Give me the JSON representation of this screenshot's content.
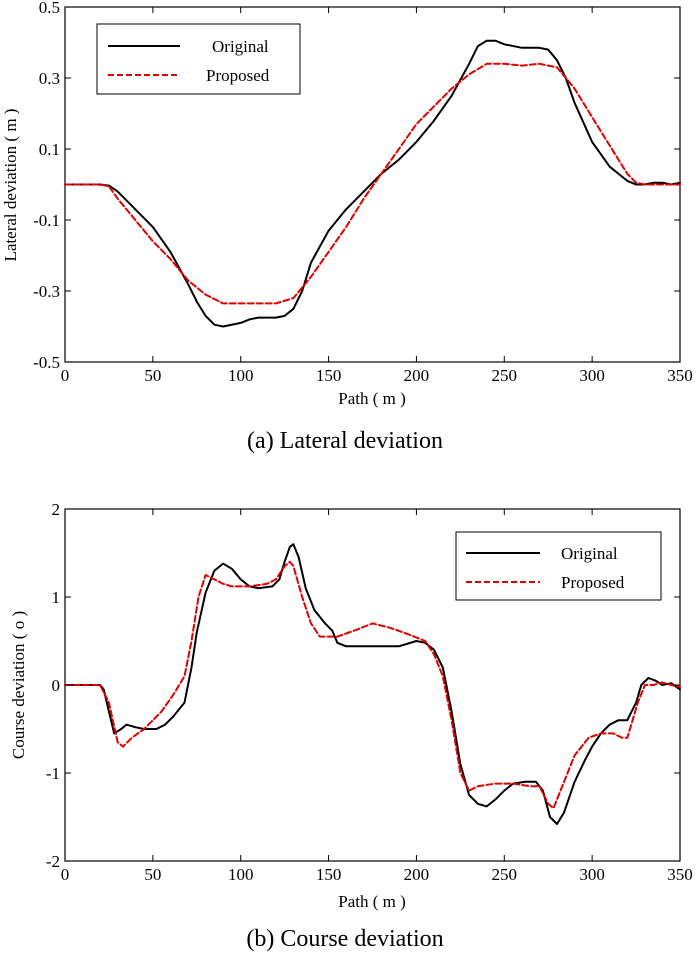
{
  "chart_data": [
    {
      "type": "line",
      "caption": "(a) Lateral deviation",
      "xlabel": "Path ( m )",
      "ylabel": "Lateral deviation ( m )",
      "xlim": [
        0,
        350
      ],
      "ylim": [
        -0.5,
        0.5
      ],
      "xticks": [
        0,
        50,
        100,
        150,
        200,
        250,
        300,
        350
      ],
      "yticks": [
        -0.5,
        -0.3,
        -0.1,
        0.1,
        0.3,
        0.5
      ],
      "ytick_labels": [
        "-0.5",
        "-0.3",
        "-0.1",
        "0.1",
        "0.3",
        "0.5"
      ],
      "grid": false,
      "legend_position": "top-left",
      "series": [
        {
          "name": "Original",
          "color": "#000000",
          "style": "solid",
          "points": [
            [
              0,
              0
            ],
            [
              20,
              0
            ],
            [
              25,
              -0.003
            ],
            [
              30,
              -0.02
            ],
            [
              40,
              -0.07
            ],
            [
              50,
              -0.12
            ],
            [
              60,
              -0.19
            ],
            [
              70,
              -0.28
            ],
            [
              75,
              -0.33
            ],
            [
              80,
              -0.37
            ],
            [
              85,
              -0.395
            ],
            [
              90,
              -0.4
            ],
            [
              100,
              -0.39
            ],
            [
              105,
              -0.38
            ],
            [
              110,
              -0.375
            ],
            [
              120,
              -0.375
            ],
            [
              125,
              -0.37
            ],
            [
              130,
              -0.35
            ],
            [
              135,
              -0.3
            ],
            [
              140,
              -0.22
            ],
            [
              150,
              -0.13
            ],
            [
              160,
              -0.07
            ],
            [
              170,
              -0.02
            ],
            [
              180,
              0.03
            ],
            [
              190,
              0.07
            ],
            [
              200,
              0.12
            ],
            [
              210,
              0.18
            ],
            [
              220,
              0.25
            ],
            [
              230,
              0.34
            ],
            [
              235,
              0.39
            ],
            [
              240,
              0.405
            ],
            [
              245,
              0.405
            ],
            [
              250,
              0.395
            ],
            [
              260,
              0.385
            ],
            [
              270,
              0.385
            ],
            [
              275,
              0.38
            ],
            [
              280,
              0.35
            ],
            [
              285,
              0.3
            ],
            [
              290,
              0.23
            ],
            [
              300,
              0.12
            ],
            [
              310,
              0.05
            ],
            [
              320,
              0.01
            ],
            [
              325,
              0.0
            ],
            [
              330,
              0.0
            ],
            [
              335,
              0.005
            ],
            [
              340,
              0.005
            ],
            [
              345,
              0.0
            ],
            [
              350,
              0.005
            ]
          ]
        },
        {
          "name": "Proposed",
          "color": "#e00000",
          "style": "dashed",
          "points": [
            [
              0,
              0
            ],
            [
              20,
              0
            ],
            [
              25,
              -0.005
            ],
            [
              30,
              -0.04
            ],
            [
              40,
              -0.1
            ],
            [
              50,
              -0.16
            ],
            [
              60,
              -0.21
            ],
            [
              70,
              -0.27
            ],
            [
              80,
              -0.31
            ],
            [
              90,
              -0.335
            ],
            [
              100,
              -0.335
            ],
            [
              110,
              -0.335
            ],
            [
              120,
              -0.335
            ],
            [
              130,
              -0.32
            ],
            [
              140,
              -0.26
            ],
            [
              150,
              -0.19
            ],
            [
              160,
              -0.12
            ],
            [
              170,
              -0.04
            ],
            [
              180,
              0.03
            ],
            [
              190,
              0.1
            ],
            [
              200,
              0.17
            ],
            [
              210,
              0.22
            ],
            [
              220,
              0.27
            ],
            [
              230,
              0.31
            ],
            [
              240,
              0.34
            ],
            [
              250,
              0.34
            ],
            [
              260,
              0.335
            ],
            [
              270,
              0.34
            ],
            [
              275,
              0.335
            ],
            [
              280,
              0.33
            ],
            [
              290,
              0.27
            ],
            [
              300,
              0.19
            ],
            [
              310,
              0.11
            ],
            [
              320,
              0.03
            ],
            [
              325,
              0.005
            ],
            [
              330,
              0.0
            ],
            [
              340,
              0.0
            ],
            [
              350,
              0.0
            ]
          ]
        }
      ]
    },
    {
      "type": "line",
      "caption": "(b) Course deviation",
      "xlabel": "Path ( m )",
      "ylabel": "Course deviation ( o )",
      "xlim": [
        0,
        350
      ],
      "ylim": [
        -2,
        2
      ],
      "xticks": [
        0,
        50,
        100,
        150,
        200,
        250,
        300,
        350
      ],
      "yticks": [
        -2,
        -1,
        0,
        1,
        2
      ],
      "ytick_labels": [
        "-2",
        "-1",
        "0",
        "1",
        "2"
      ],
      "grid": false,
      "legend_position": "top-right",
      "series": [
        {
          "name": "Original",
          "color": "#000000",
          "style": "solid",
          "points": [
            [
              0,
              0
            ],
            [
              20,
              0
            ],
            [
              22,
              -0.05
            ],
            [
              25,
              -0.3
            ],
            [
              28,
              -0.55
            ],
            [
              32,
              -0.5
            ],
            [
              35,
              -0.45
            ],
            [
              40,
              -0.48
            ],
            [
              45,
              -0.5
            ],
            [
              52,
              -0.5
            ],
            [
              57,
              -0.45
            ],
            [
              62,
              -0.35
            ],
            [
              68,
              -0.2
            ],
            [
              72,
              0.2
            ],
            [
              75,
              0.6
            ],
            [
              80,
              1.05
            ],
            [
              85,
              1.3
            ],
            [
              90,
              1.38
            ],
            [
              95,
              1.32
            ],
            [
              100,
              1.2
            ],
            [
              105,
              1.12
            ],
            [
              110,
              1.1
            ],
            [
              118,
              1.12
            ],
            [
              122,
              1.2
            ],
            [
              125,
              1.4
            ],
            [
              128,
              1.57
            ],
            [
              130,
              1.6
            ],
            [
              133,
              1.45
            ],
            [
              137,
              1.1
            ],
            [
              142,
              0.85
            ],
            [
              148,
              0.7
            ],
            [
              152,
              0.62
            ],
            [
              155,
              0.48
            ],
            [
              160,
              0.44
            ],
            [
              170,
              0.44
            ],
            [
              180,
              0.44
            ],
            [
              190,
              0.44
            ],
            [
              200,
              0.5
            ],
            [
              205,
              0.48
            ],
            [
              210,
              0.4
            ],
            [
              215,
              0.2
            ],
            [
              220,
              -0.3
            ],
            [
              225,
              -0.9
            ],
            [
              230,
              -1.25
            ],
            [
              235,
              -1.35
            ],
            [
              240,
              -1.38
            ],
            [
              245,
              -1.3
            ],
            [
              250,
              -1.2
            ],
            [
              255,
              -1.12
            ],
            [
              262,
              -1.1
            ],
            [
              268,
              -1.1
            ],
            [
              272,
              -1.2
            ],
            [
              276,
              -1.5
            ],
            [
              280,
              -1.58
            ],
            [
              284,
              -1.45
            ],
            [
              290,
              -1.1
            ],
            [
              296,
              -0.85
            ],
            [
              300,
              -0.7
            ],
            [
              305,
              -0.55
            ],
            [
              310,
              -0.45
            ],
            [
              315,
              -0.4
            ],
            [
              320,
              -0.4
            ],
            [
              325,
              -0.2
            ],
            [
              328,
              0.0
            ],
            [
              332,
              0.08
            ],
            [
              336,
              0.05
            ],
            [
              340,
              0.0
            ],
            [
              345,
              0.02
            ],
            [
              350,
              -0.05
            ]
          ]
        },
        {
          "name": "Proposed",
          "color": "#e00000",
          "style": "dashed",
          "points": [
            [
              0,
              0
            ],
            [
              20,
              0
            ],
            [
              25,
              -0.2
            ],
            [
              30,
              -0.65
            ],
            [
              33,
              -0.7
            ],
            [
              38,
              -0.6
            ],
            [
              45,
              -0.5
            ],
            [
              50,
              -0.4
            ],
            [
              55,
              -0.3
            ],
            [
              62,
              -0.1
            ],
            [
              68,
              0.1
            ],
            [
              72,
              0.5
            ],
            [
              76,
              1.0
            ],
            [
              80,
              1.25
            ],
            [
              85,
              1.2
            ],
            [
              90,
              1.15
            ],
            [
              95,
              1.12
            ],
            [
              105,
              1.12
            ],
            [
              115,
              1.15
            ],
            [
              120,
              1.2
            ],
            [
              125,
              1.35
            ],
            [
              128,
              1.4
            ],
            [
              130,
              1.35
            ],
            [
              135,
              1.0
            ],
            [
              140,
              0.7
            ],
            [
              145,
              0.55
            ],
            [
              155,
              0.55
            ],
            [
              165,
              0.62
            ],
            [
              175,
              0.7
            ],
            [
              185,
              0.65
            ],
            [
              195,
              0.58
            ],
            [
              205,
              0.5
            ],
            [
              210,
              0.35
            ],
            [
              215,
              0.1
            ],
            [
              220,
              -0.4
            ],
            [
              225,
              -1.0
            ],
            [
              230,
              -1.2
            ],
            [
              235,
              -1.15
            ],
            [
              245,
              -1.12
            ],
            [
              255,
              -1.12
            ],
            [
              265,
              -1.15
            ],
            [
              270,
              -1.15
            ],
            [
              275,
              -1.35
            ],
            [
              278,
              -1.4
            ],
            [
              282,
              -1.2
            ],
            [
              290,
              -0.8
            ],
            [
              298,
              -0.6
            ],
            [
              305,
              -0.55
            ],
            [
              312,
              -0.55
            ],
            [
              317,
              -0.6
            ],
            [
              320,
              -0.6
            ],
            [
              323,
              -0.4
            ],
            [
              326,
              -0.2
            ],
            [
              330,
              0.0
            ],
            [
              335,
              0.0
            ],
            [
              340,
              0.03
            ],
            [
              345,
              0.0
            ],
            [
              350,
              -0.02
            ]
          ]
        }
      ]
    }
  ],
  "charts": [
    {
      "xlabel": "Path ( m )",
      "ylabel": "Lateral deviation ( m )",
      "caption": "(a) Lateral deviation",
      "legend": [
        "Original",
        "Proposed"
      ]
    },
    {
      "xlabel": "Path ( m )",
      "ylabel": "Course deviation ( o )",
      "caption": "(b) Course deviation",
      "legend": [
        "Original",
        "Proposed"
      ]
    }
  ]
}
